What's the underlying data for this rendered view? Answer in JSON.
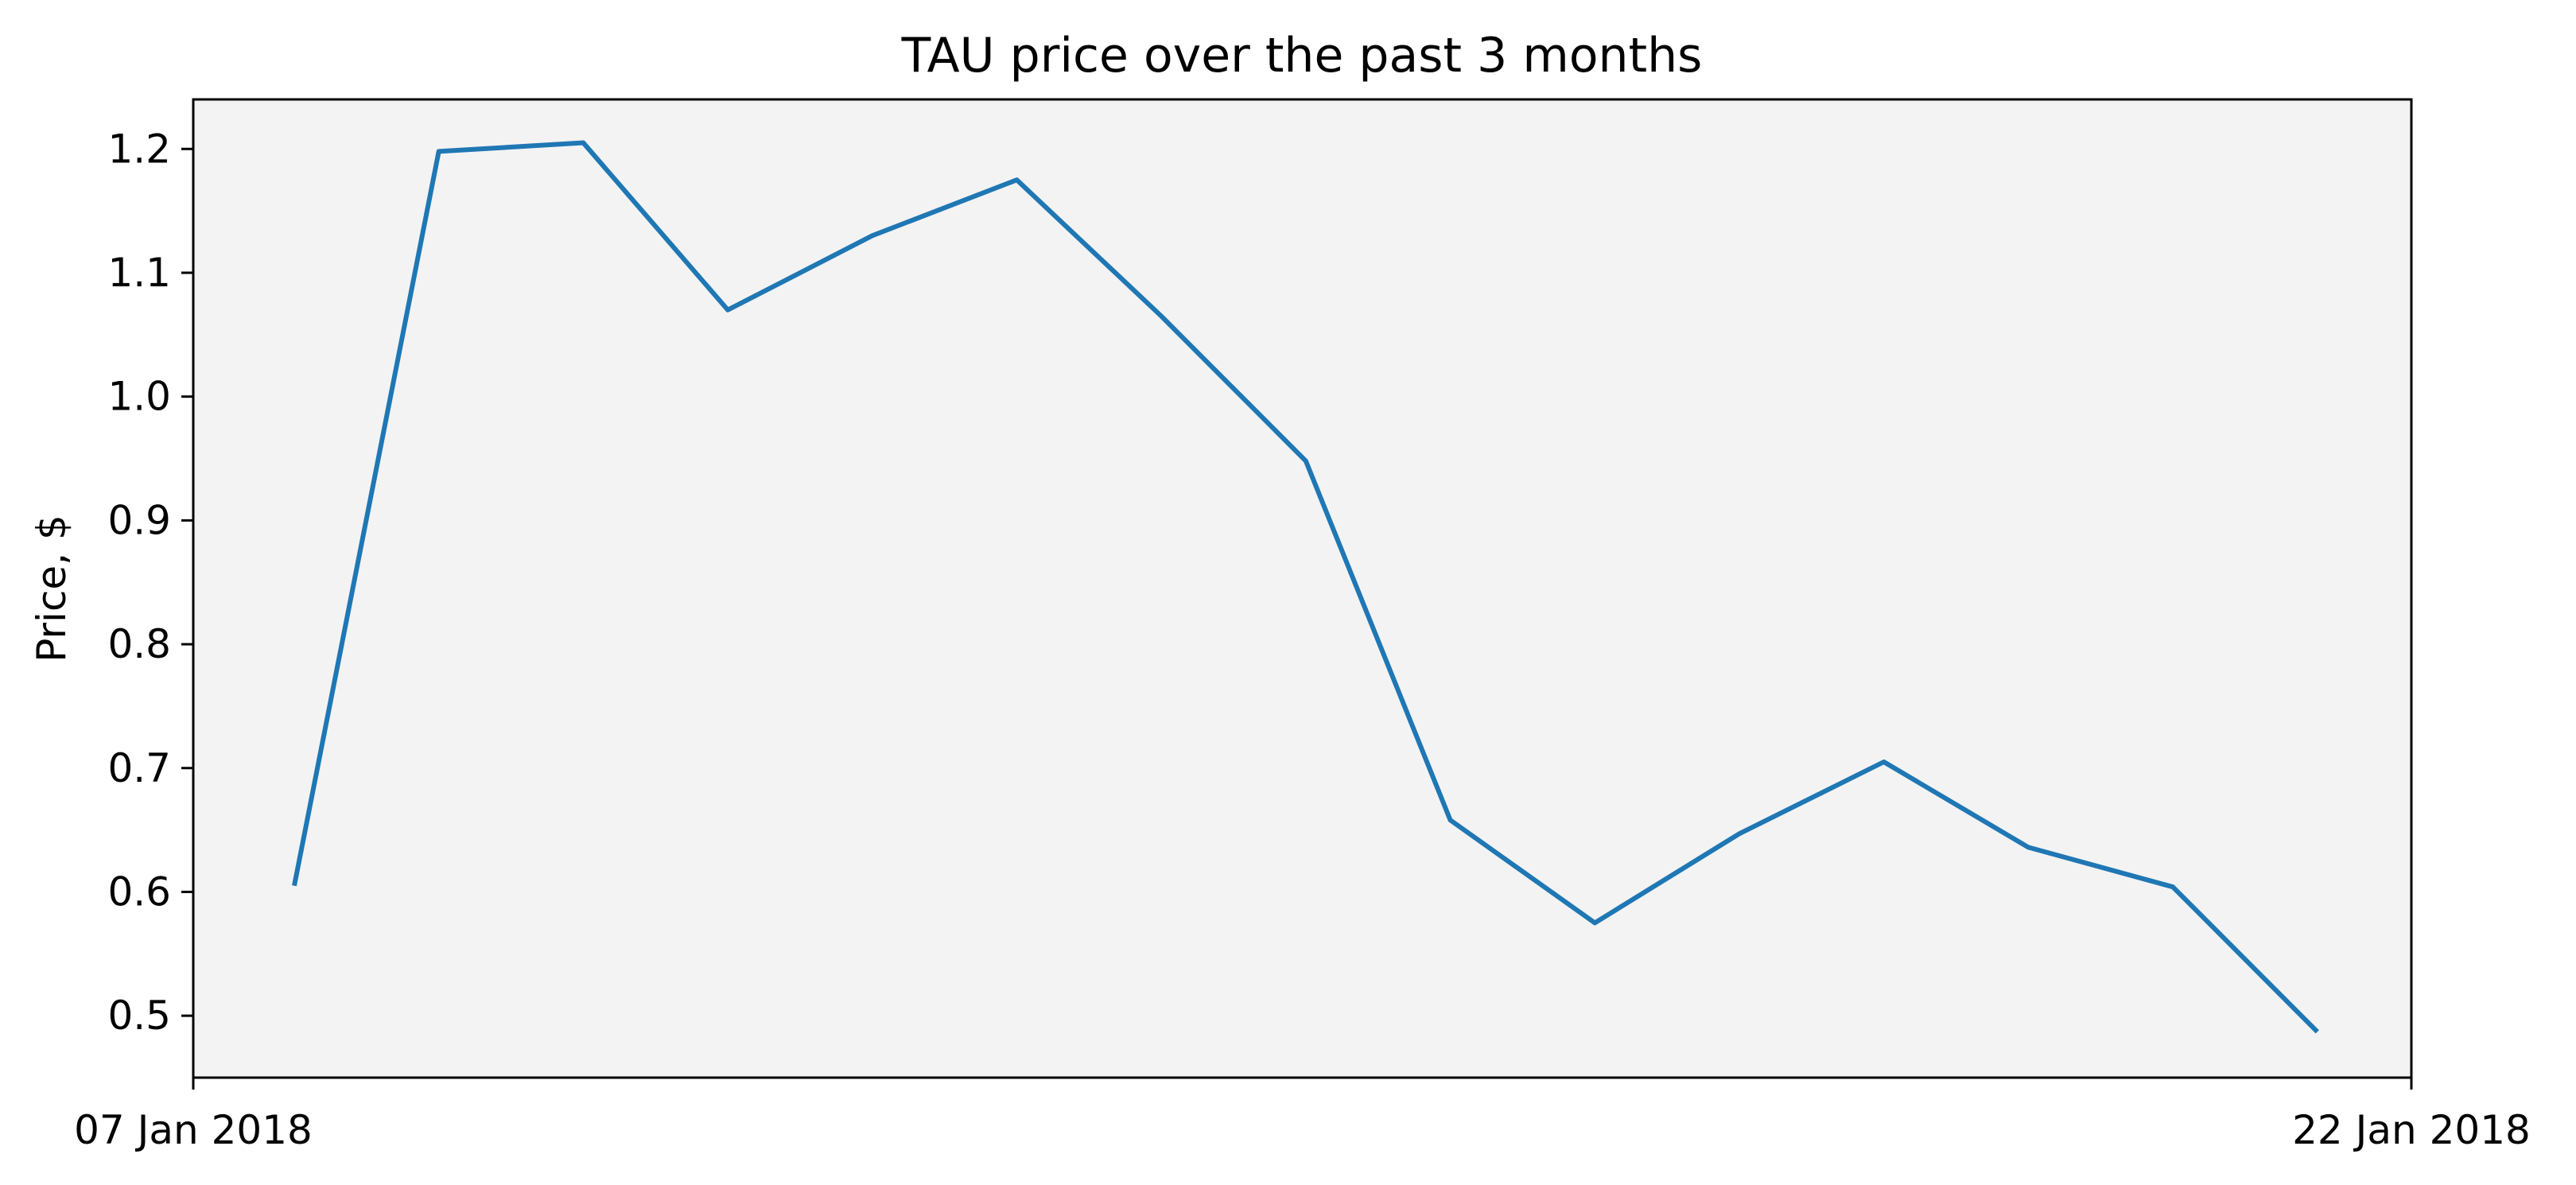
{
  "chart_data": {
    "type": "line",
    "title": "TAU price over the past 3 months",
    "xlabel": "",
    "ylabel": "Price, $",
    "ylim": [
      0.45,
      1.24
    ],
    "y_ticks": [
      0.5,
      0.6,
      0.7,
      0.8,
      0.9,
      1.0,
      1.1,
      1.2
    ],
    "y_tick_labels": [
      "0.5",
      "0.6",
      "0.7",
      "0.8",
      "0.9",
      "1.0",
      "1.1",
      "1.2"
    ],
    "x_ticks": [
      "07 Jan 2018",
      "22 Jan 2018"
    ],
    "grid": false,
    "plot_background": "#f3f3f3",
    "series": [
      {
        "color": "#1f77b4",
        "values": [
          0.605,
          1.198,
          1.205,
          1.07,
          1.13,
          1.175,
          1.065,
          0.948,
          0.658,
          0.575,
          0.647,
          0.705,
          0.636,
          0.604,
          0.487
        ]
      }
    ]
  }
}
